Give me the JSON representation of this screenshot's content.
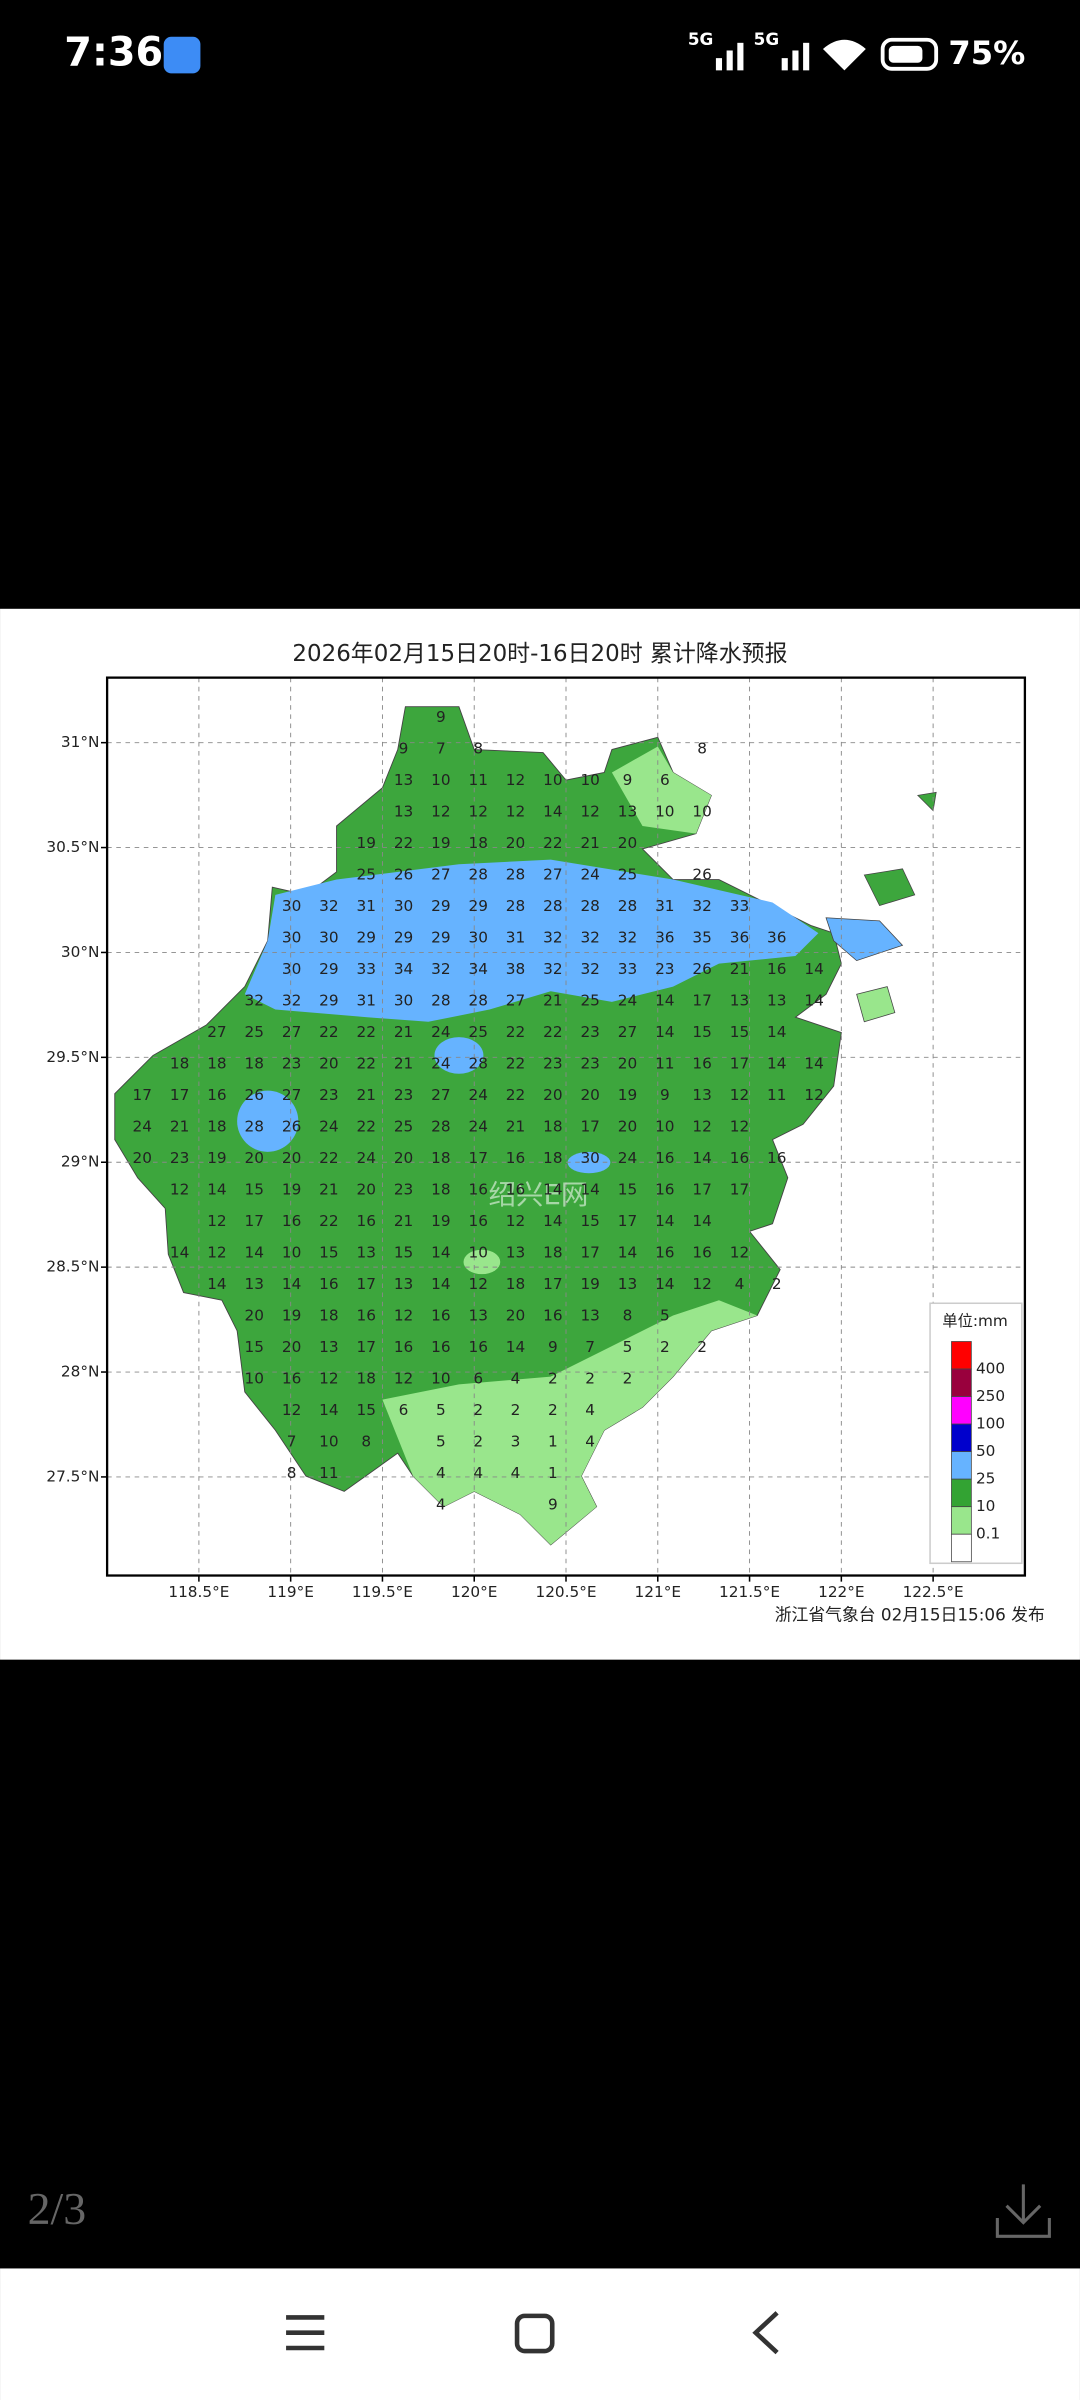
{
  "status_bar": {
    "time": "7:36",
    "network": [
      "5G",
      "5G"
    ],
    "battery": "75%"
  },
  "viewer": {
    "page_indicator": "2/3"
  },
  "image": {
    "title": "2026年02月15日20时-16日20时 累计降水预报",
    "xlim": [
      118.0,
      123.0
    ],
    "ylim": [
      27.03,
      31.31
    ],
    "xticks": [
      {
        "value": 118.5,
        "label": "118.5°E"
      },
      {
        "value": 119,
        "label": "119°E"
      },
      {
        "value": 119.5,
        "label": "119.5°E"
      },
      {
        "value": 120,
        "label": "120°E"
      },
      {
        "value": 120.5,
        "label": "120.5°E"
      },
      {
        "value": 121,
        "label": "121°E"
      },
      {
        "value": 121.5,
        "label": "121.5°E"
      },
      {
        "value": 122,
        "label": "122°E"
      },
      {
        "value": 122.5,
        "label": "122.5°E"
      }
    ],
    "yticks": [
      {
        "value": 31,
        "label": "31°N"
      },
      {
        "value": 30.5,
        "label": "30.5°N"
      },
      {
        "value": 30,
        "label": "30°N"
      },
      {
        "value": 29.5,
        "label": "29.5°N"
      },
      {
        "value": 29,
        "label": "29°N"
      },
      {
        "value": 28.5,
        "label": "28.5°N"
      },
      {
        "value": 28,
        "label": "28°N"
      },
      {
        "value": 27.5,
        "label": "27.5°N"
      }
    ],
    "grid_values": [
      {
        "start": 8,
        "cells": [
          9
        ]
      },
      {
        "start": 7,
        "cells": [
          9,
          7,
          8,
          null,
          null,
          null,
          null,
          null,
          8
        ]
      },
      {
        "start": 7,
        "cells": [
          13,
          10,
          11,
          12,
          10,
          10,
          9,
          6
        ]
      },
      {
        "start": 7,
        "cells": [
          13,
          12,
          12,
          12,
          14,
          12,
          13,
          10,
          10
        ]
      },
      {
        "start": 6,
        "cells": [
          19,
          22,
          19,
          18,
          20,
          22,
          21,
          20
        ]
      },
      {
        "start": 6,
        "cells": [
          25,
          26,
          27,
          28,
          28,
          27,
          24,
          25,
          null,
          26
        ]
      },
      {
        "start": 4,
        "cells": [
          30,
          32,
          31,
          30,
          29,
          29,
          28,
          28,
          28,
          28,
          31,
          32,
          33
        ]
      },
      {
        "start": 4,
        "cells": [
          30,
          30,
          29,
          29,
          29,
          30,
          31,
          32,
          32,
          32,
          36,
          35,
          36,
          36
        ]
      },
      {
        "start": 4,
        "cells": [
          30,
          29,
          33,
          34,
          32,
          34,
          38,
          32,
          32,
          33,
          23,
          26,
          21,
          16,
          14
        ]
      },
      {
        "start": 3,
        "cells": [
          32,
          32,
          29,
          31,
          30,
          28,
          28,
          27,
          21,
          25,
          24,
          14,
          17,
          13,
          13,
          14
        ]
      },
      {
        "start": 2,
        "cells": [
          27,
          25,
          27,
          22,
          22,
          21,
          24,
          25,
          22,
          22,
          23,
          27,
          14,
          15,
          15,
          14
        ]
      },
      {
        "start": 1,
        "cells": [
          18,
          18,
          18,
          23,
          20,
          22,
          21,
          24,
          28,
          22,
          23,
          23,
          20,
          11,
          16,
          17,
          14,
          14
        ]
      },
      {
        "start": 0,
        "cells": [
          17,
          17,
          16,
          26,
          27,
          23,
          21,
          23,
          27,
          24,
          22,
          20,
          20,
          19,
          9,
          13,
          12,
          11,
          12
        ]
      },
      {
        "start": 0,
        "cells": [
          24,
          21,
          18,
          28,
          26,
          24,
          22,
          25,
          28,
          24,
          21,
          18,
          17,
          20,
          10,
          12,
          12
        ]
      },
      {
        "start": 0,
        "cells": [
          20,
          23,
          19,
          20,
          20,
          22,
          24,
          20,
          18,
          17,
          16,
          18,
          30,
          24,
          16,
          14,
          16,
          16
        ]
      },
      {
        "start": 1,
        "cells": [
          12,
          14,
          15,
          19,
          21,
          20,
          23,
          18,
          16,
          16,
          14,
          14,
          15,
          16,
          17,
          17
        ]
      },
      {
        "start": 2,
        "cells": [
          12,
          17,
          16,
          22,
          16,
          21,
          19,
          16,
          12,
          14,
          15,
          17,
          14,
          14
        ]
      },
      {
        "start": 1,
        "cells": [
          14,
          12,
          14,
          10,
          15,
          13,
          15,
          14,
          10,
          13,
          18,
          17,
          14,
          16,
          16,
          12
        ]
      },
      {
        "start": 2,
        "cells": [
          14,
          13,
          14,
          16,
          17,
          13,
          14,
          12,
          18,
          17,
          19,
          13,
          14,
          12,
          4,
          2
        ]
      },
      {
        "start": 3,
        "cells": [
          20,
          19,
          18,
          16,
          12,
          16,
          13,
          20,
          16,
          13,
          8,
          5
        ]
      },
      {
        "start": 3,
        "cells": [
          15,
          20,
          13,
          17,
          16,
          16,
          16,
          14,
          9,
          7,
          5,
          2,
          2
        ]
      },
      {
        "start": 3,
        "cells": [
          10,
          16,
          12,
          18,
          12,
          10,
          6,
          4,
          2,
          2,
          2
        ]
      },
      {
        "start": 4,
        "cells": [
          12,
          14,
          15,
          6,
          5,
          2,
          2,
          2,
          4
        ]
      },
      {
        "start": 4,
        "cells": [
          7,
          10,
          8,
          null,
          5,
          2,
          3,
          1,
          4
        ]
      },
      {
        "start": 4,
        "cells": [
          8,
          11,
          null,
          null,
          4,
          4,
          4,
          1
        ]
      },
      {
        "start": 8,
        "cells": [
          4,
          null,
          null,
          9
        ]
      }
    ],
    "legend": {
      "title": "单位:mm",
      "levels": [
        400,
        250,
        100,
        50,
        25,
        10,
        0.1
      ],
      "colors": [
        "#ff0000",
        "#99003d",
        "#ff00ff",
        "#0000cc",
        "#66b3ff",
        "#33a333",
        "#99e68c",
        "#ffffff"
      ]
    },
    "watermark": "绍兴E网",
    "credit": "浙江省气象台 02月15日15:06 发布"
  }
}
